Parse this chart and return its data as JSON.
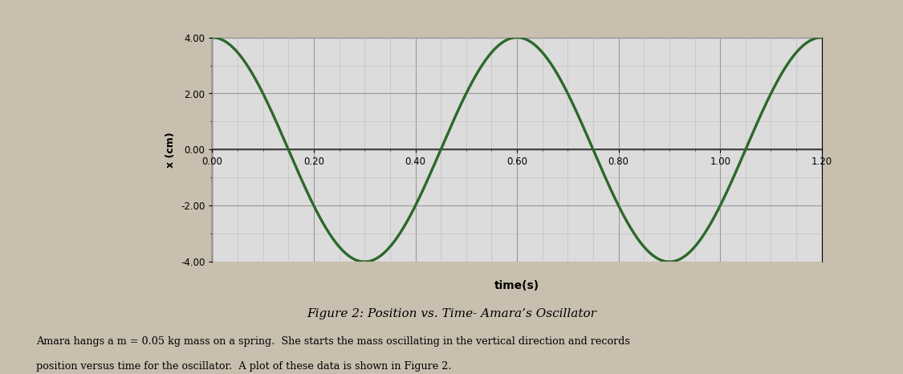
{
  "title": "Figure 2: Position vs. Time- Amara’s Oscillator",
  "xlabel": "time(s)",
  "ylabel": "x (cm)",
  "xlim": [
    0.0,
    1.2
  ],
  "ylim": [
    -4.0,
    4.0
  ],
  "xticks": [
    0.0,
    0.2,
    0.4,
    0.6,
    0.8,
    1.0,
    1.2
  ],
  "yticks": [
    -4.0,
    -2.0,
    0.0,
    2.0,
    4.0
  ],
  "amplitude": 4.0,
  "period": 0.6,
  "phase": 0.0,
  "line_color": "#2d6a2d",
  "line_width": 2.2,
  "grid_major_color": "#999999",
  "grid_minor_color": "#bbbbbb",
  "bg_color": "#dcdcdc",
  "caption": "Figure 2: Position vs. Time- Amara’s Oscillator",
  "body_text_line1": "Amara hangs a m = 0.05 kg mass on a spring.  She starts the mass oscillating in the vertical direction and records",
  "body_text_line2": "position versus time for the oscillator.  A plot of these data is shown in Figure 2.",
  "figure_bg": "#c8bfaf"
}
